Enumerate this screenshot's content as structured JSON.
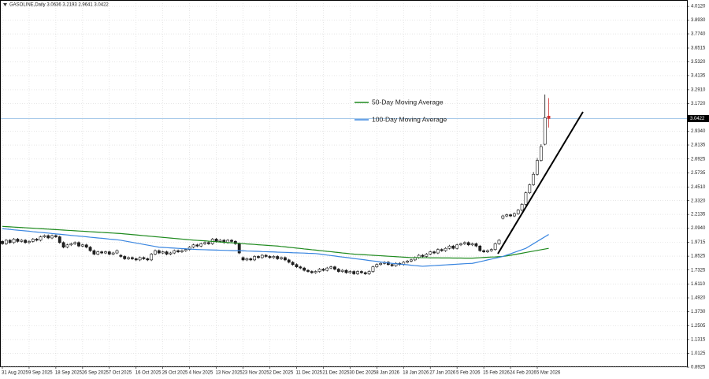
{
  "chart_data": {
    "type": "candlestick",
    "title": "GASOLINE,Daily  3.0636 3.2193 2.9641 3.0422",
    "categories": [
      "31 Aug 2025",
      null,
      null,
      null,
      null,
      null,
      null,
      "9 Sep 2025",
      null,
      null,
      null,
      null,
      null,
      null,
      "18 Sep 2025",
      null,
      null,
      null,
      null,
      null,
      null,
      "26 Sep 2025",
      null,
      null,
      null,
      null,
      null,
      null,
      "7 Oct 2025",
      null,
      null,
      null,
      null,
      null,
      null,
      "16 Oct 2025",
      null,
      null,
      null,
      null,
      null,
      null,
      "26 Oct 2025",
      null,
      null,
      null,
      null,
      null,
      null,
      "4 Nov 2025",
      null,
      null,
      null,
      null,
      null,
      null,
      "13 Nov 2025",
      null,
      null,
      null,
      null,
      null,
      null,
      "23 Nov 2025",
      null,
      null,
      null,
      null,
      null,
      null,
      "2 Dec 2025",
      null,
      null,
      null,
      null,
      null,
      null,
      "11 Dec 2025",
      null,
      null,
      null,
      null,
      null,
      null,
      "21 Dec 2025",
      null,
      null,
      null,
      null,
      null,
      null,
      "30 Dec 2025",
      null,
      null,
      null,
      null,
      null,
      null,
      "8 Jan 2026",
      null,
      null,
      null,
      null,
      null,
      null,
      "18 Jan 2026",
      null,
      null,
      null,
      null,
      null,
      null,
      "27 Jan 2026",
      null,
      null,
      null,
      null,
      null,
      null,
      "5 Feb 2026",
      null,
      null,
      null,
      null,
      null,
      null,
      "15 Feb 2026",
      null,
      null,
      null,
      null,
      null,
      null,
      "24 Feb 2026",
      null,
      null,
      null,
      null,
      null,
      null,
      "5 Mar 2026",
      null,
      null,
      null
    ],
    "ohlc": [
      [
        1.98,
        1.99,
        1.95,
        1.96
      ],
      [
        1.96,
        2.0,
        1.95,
        1.99
      ],
      [
        1.99,
        2.0,
        1.96,
        1.97
      ],
      [
        1.97,
        2.01,
        1.96,
        2.0
      ],
      [
        2.0,
        2.01,
        1.97,
        1.98
      ],
      [
        1.98,
        2.0,
        1.97,
        1.99
      ],
      [
        1.99,
        2.0,
        1.96,
        1.97
      ],
      [
        1.97,
        1.99,
        1.96,
        1.98
      ],
      [
        1.98,
        2.01,
        1.97,
        2.0
      ],
      [
        2.0,
        2.01,
        1.98,
        1.99
      ],
      [
        1.99,
        2.03,
        1.98,
        2.02
      ],
      [
        2.02,
        2.04,
        2.01,
        2.03
      ],
      [
        2.03,
        2.04,
        2.0,
        2.01
      ],
      [
        2.01,
        2.04,
        2.0,
        2.03
      ],
      [
        2.03,
        2.04,
        2.01,
        2.02
      ],
      [
        2.02,
        2.03,
        1.96,
        1.97
      ],
      [
        1.97,
        1.98,
        1.92,
        1.93
      ],
      [
        1.93,
        1.96,
        1.92,
        1.95
      ],
      [
        1.95,
        1.97,
        1.94,
        1.96
      ],
      [
        1.96,
        1.98,
        1.95,
        1.97
      ],
      [
        1.97,
        1.98,
        1.93,
        1.94
      ],
      [
        1.94,
        1.96,
        1.93,
        1.95
      ],
      [
        1.95,
        1.96,
        1.92,
        1.93
      ],
      [
        1.93,
        1.94,
        1.89,
        1.9
      ],
      [
        1.9,
        1.91,
        1.86,
        1.87
      ],
      [
        1.87,
        1.9,
        1.86,
        1.89
      ],
      [
        1.89,
        1.9,
        1.87,
        1.88
      ],
      [
        1.88,
        1.9,
        1.87,
        1.89
      ],
      [
        1.89,
        1.9,
        1.86,
        1.87
      ],
      [
        1.87,
        1.89,
        1.86,
        1.88
      ],
      [
        1.88,
        1.91,
        1.87,
        1.9
      ],
      [
        1.86,
        1.87,
        1.84,
        1.85
      ],
      [
        1.85,
        1.86,
        1.82,
        1.83
      ],
      [
        1.83,
        1.85,
        1.82,
        1.84
      ],
      [
        1.84,
        1.85,
        1.82,
        1.83
      ],
      [
        1.83,
        1.84,
        1.81,
        1.82
      ],
      [
        1.82,
        1.85,
        1.81,
        1.84
      ],
      [
        1.84,
        1.85,
        1.82,
        1.83
      ],
      [
        1.83,
        1.84,
        1.81,
        1.82
      ],
      [
        1.82,
        1.88,
        1.81,
        1.87
      ],
      [
        1.87,
        1.91,
        1.86,
        1.9
      ],
      [
        1.9,
        1.91,
        1.87,
        1.88
      ],
      [
        1.88,
        1.9,
        1.87,
        1.89
      ],
      [
        1.89,
        1.9,
        1.86,
        1.87
      ],
      [
        1.87,
        1.89,
        1.86,
        1.88
      ],
      [
        1.88,
        1.91,
        1.87,
        1.9
      ],
      [
        1.9,
        1.91,
        1.88,
        1.89
      ],
      [
        1.89,
        1.91,
        1.88,
        1.9
      ],
      [
        1.9,
        1.92,
        1.89,
        1.91
      ],
      [
        1.91,
        1.94,
        1.9,
        1.93
      ],
      [
        1.93,
        1.96,
        1.92,
        1.95
      ],
      [
        1.95,
        1.96,
        1.93,
        1.94
      ],
      [
        1.94,
        1.97,
        1.93,
        1.96
      ],
      [
        1.96,
        1.98,
        1.95,
        1.97
      ],
      [
        1.97,
        1.98,
        1.95,
        1.96
      ],
      [
        1.96,
        2.01,
        1.95,
        2.0
      ],
      [
        2.0,
        2.01,
        1.97,
        1.98
      ],
      [
        1.98,
        2.0,
        1.97,
        1.99
      ],
      [
        1.99,
        2.0,
        1.96,
        1.97
      ],
      [
        1.97,
        2.0,
        1.96,
        1.99
      ],
      [
        1.99,
        2.0,
        1.97,
        1.98
      ],
      [
        1.98,
        1.99,
        1.95,
        1.96
      ],
      [
        1.96,
        1.97,
        1.87,
        1.88
      ],
      [
        1.84,
        1.85,
        1.81,
        1.82
      ],
      [
        1.82,
        1.84,
        1.81,
        1.83
      ],
      [
        1.83,
        1.84,
        1.81,
        1.82
      ],
      [
        1.82,
        1.86,
        1.81,
        1.85
      ],
      [
        1.85,
        1.86,
        1.83,
        1.84
      ],
      [
        1.84,
        1.87,
        1.83,
        1.86
      ],
      [
        1.86,
        1.87,
        1.84,
        1.85
      ],
      [
        1.85,
        1.86,
        1.83,
        1.84
      ],
      [
        1.84,
        1.86,
        1.83,
        1.85
      ],
      [
        1.85,
        1.86,
        1.82,
        1.83
      ],
      [
        1.83,
        1.85,
        1.82,
        1.84
      ],
      [
        1.84,
        1.85,
        1.81,
        1.82
      ],
      [
        1.82,
        1.83,
        1.79,
        1.8
      ],
      [
        1.8,
        1.81,
        1.77,
        1.78
      ],
      [
        1.78,
        1.79,
        1.75,
        1.76
      ],
      [
        1.76,
        1.77,
        1.74,
        1.75
      ],
      [
        1.75,
        1.76,
        1.72,
        1.73
      ],
      [
        1.73,
        1.74,
        1.71,
        1.72
      ],
      [
        1.72,
        1.73,
        1.7,
        1.71
      ],
      [
        1.71,
        1.73,
        1.7,
        1.72
      ],
      [
        1.72,
        1.75,
        1.71,
        1.74
      ],
      [
        1.74,
        1.75,
        1.72,
        1.73
      ],
      [
        1.73,
        1.76,
        1.72,
        1.75
      ],
      [
        1.75,
        1.77,
        1.74,
        1.76
      ],
      [
        1.76,
        1.77,
        1.73,
        1.74
      ],
      [
        1.74,
        1.75,
        1.71,
        1.72
      ],
      [
        1.72,
        1.74,
        1.71,
        1.73
      ],
      [
        1.73,
        1.74,
        1.7,
        1.71
      ],
      [
        1.71,
        1.73,
        1.7,
        1.72
      ],
      [
        1.72,
        1.73,
        1.69,
        1.7
      ],
      [
        1.7,
        1.73,
        1.69,
        1.72
      ],
      [
        1.72,
        1.73,
        1.7,
        1.71
      ],
      [
        1.71,
        1.72,
        1.69,
        1.7
      ],
      [
        1.7,
        1.73,
        1.69,
        1.72
      ],
      [
        1.72,
        1.77,
        1.71,
        1.76
      ],
      [
        1.76,
        1.79,
        1.75,
        1.78
      ],
      [
        1.78,
        1.8,
        1.77,
        1.79
      ],
      [
        1.79,
        1.81,
        1.78,
        1.8
      ],
      [
        1.8,
        1.81,
        1.77,
        1.78
      ],
      [
        1.78,
        1.79,
        1.76,
        1.77
      ],
      [
        1.77,
        1.8,
        1.76,
        1.79
      ],
      [
        1.79,
        1.8,
        1.77,
        1.78
      ],
      [
        1.78,
        1.81,
        1.77,
        1.8
      ],
      [
        1.8,
        1.82,
        1.79,
        1.81
      ],
      [
        1.81,
        1.83,
        1.8,
        1.82
      ],
      [
        1.82,
        1.85,
        1.81,
        1.84
      ],
      [
        1.84,
        1.87,
        1.83,
        1.86
      ],
      [
        1.86,
        1.87,
        1.84,
        1.85
      ],
      [
        1.85,
        1.88,
        1.84,
        1.87
      ],
      [
        1.87,
        1.9,
        1.86,
        1.89
      ],
      [
        1.89,
        1.9,
        1.87,
        1.88
      ],
      [
        1.88,
        1.92,
        1.87,
        1.91
      ],
      [
        1.91,
        1.92,
        1.89,
        1.9
      ],
      [
        1.9,
        1.93,
        1.89,
        1.92
      ],
      [
        1.92,
        1.95,
        1.91,
        1.94
      ],
      [
        1.94,
        1.95,
        1.91,
        1.92
      ],
      [
        1.92,
        1.96,
        1.91,
        1.95
      ],
      [
        1.95,
        1.97,
        1.94,
        1.96
      ],
      [
        1.96,
        1.98,
        1.95,
        1.97
      ],
      [
        1.97,
        1.98,
        1.94,
        1.95
      ],
      [
        1.95,
        1.97,
        1.94,
        1.96
      ],
      [
        1.96,
        1.97,
        1.93,
        1.94
      ],
      [
        1.94,
        1.95,
        1.89,
        1.9
      ],
      [
        1.9,
        1.91,
        1.88,
        1.89
      ],
      [
        1.89,
        1.91,
        1.88,
        1.9
      ],
      [
        1.9,
        1.92,
        1.89,
        1.91
      ],
      [
        1.91,
        1.97,
        1.9,
        1.96
      ],
      [
        1.96,
        2.0,
        1.95,
        1.99
      ],
      [
        2.18,
        2.21,
        2.17,
        2.2
      ],
      [
        2.2,
        2.22,
        2.19,
        2.21
      ],
      [
        2.21,
        2.22,
        2.19,
        2.2
      ],
      [
        2.2,
        2.23,
        2.19,
        2.22
      ],
      [
        2.22,
        2.26,
        2.21,
        2.25
      ],
      [
        2.25,
        2.31,
        2.24,
        2.3
      ],
      [
        2.3,
        2.41,
        2.29,
        2.4
      ],
      [
        2.4,
        2.48,
        2.39,
        2.47
      ],
      [
        2.47,
        2.58,
        2.46,
        2.56
      ],
      [
        2.56,
        2.7,
        2.55,
        2.68
      ],
      [
        2.68,
        2.82,
        2.67,
        2.8
      ],
      [
        2.82,
        3.25,
        2.81,
        3.05
      ],
      [
        3.0636,
        3.2193,
        2.9641,
        3.0422
      ]
    ],
    "up_color": "#ffffff",
    "down_color": "#222222",
    "outline_color": "#111111",
    "last_color": "#d23030",
    "series": [
      {
        "name": "50-Day Moving Average",
        "color": "#1e8a1e",
        "values": [
          2.11,
          2.108,
          2.106,
          2.104,
          2.102,
          2.1,
          2.098,
          2.096,
          2.094,
          2.092,
          2.09,
          2.088,
          2.086,
          2.084,
          2.082,
          2.08,
          2.078,
          2.076,
          2.074,
          2.072,
          2.07,
          2.068,
          2.066,
          2.064,
          2.062,
          2.06,
          2.058,
          2.056,
          2.054,
          2.052,
          2.05,
          2.048,
          2.045,
          2.042,
          2.039,
          2.036,
          2.033,
          2.03,
          2.027,
          2.024,
          2.021,
          2.018,
          2.015,
          2.012,
          2.009,
          2.006,
          2.003,
          2.0,
          1.997,
          1.994,
          1.991,
          1.989,
          1.987,
          1.985,
          1.982,
          1.98,
          1.977,
          1.975,
          1.973,
          1.97,
          1.968,
          1.966,
          1.963,
          1.961,
          1.958,
          1.956,
          1.954,
          1.951,
          1.949,
          1.947,
          1.944,
          1.942,
          1.94,
          1.936,
          1.933,
          1.929,
          1.926,
          1.922,
          1.919,
          1.915,
          1.912,
          1.908,
          1.905,
          1.901,
          1.898,
          1.894,
          1.891,
          1.887,
          1.884,
          1.88,
          1.877,
          1.873,
          1.87,
          1.868,
          1.866,
          1.864,
          1.862,
          1.86,
          1.858,
          1.856,
          1.854,
          1.852,
          1.85,
          1.848,
          1.846,
          1.844,
          1.842,
          1.84,
          1.84,
          1.84,
          1.839,
          1.839,
          1.838,
          1.838,
          1.838,
          1.837,
          1.837,
          1.837,
          1.836,
          1.836,
          1.836,
          1.835,
          1.835,
          1.835,
          1.837,
          1.839,
          1.841,
          1.843,
          1.845,
          1.846,
          1.848,
          1.85,
          1.855,
          1.86,
          1.866,
          1.872,
          1.878,
          1.884,
          1.89,
          1.896,
          1.902,
          1.908,
          1.914,
          1.92
        ]
      },
      {
        "name": "100-Day Moving Average",
        "color": "#3a86e0",
        "values": [
          2.09,
          2.087,
          2.084,
          2.08,
          2.077,
          2.074,
          2.071,
          2.068,
          2.064,
          2.061,
          2.058,
          2.055,
          2.052,
          2.048,
          2.045,
          2.042,
          2.039,
          2.036,
          2.032,
          2.029,
          2.026,
          2.023,
          2.02,
          2.016,
          2.013,
          2.01,
          2.007,
          2.004,
          2.0,
          1.997,
          1.994,
          1.99,
          1.984,
          1.978,
          1.972,
          1.966,
          1.96,
          1.954,
          1.948,
          1.942,
          1.936,
          1.93,
          1.928,
          1.926,
          1.924,
          1.922,
          1.92,
          1.918,
          1.916,
          1.914,
          1.912,
          1.91,
          1.909,
          1.908,
          1.907,
          1.906,
          1.905,
          1.904,
          1.903,
          1.902,
          1.901,
          1.9,
          1.9,
          1.899,
          1.897,
          1.896,
          1.895,
          1.894,
          1.892,
          1.891,
          1.89,
          1.889,
          1.887,
          1.886,
          1.885,
          1.884,
          1.882,
          1.881,
          1.88,
          1.879,
          1.877,
          1.876,
          1.875,
          1.871,
          1.867,
          1.862,
          1.858,
          1.854,
          1.849,
          1.845,
          1.841,
          1.837,
          1.832,
          1.828,
          1.824,
          1.82,
          1.815,
          1.811,
          1.807,
          1.802,
          1.798,
          1.794,
          1.79,
          1.787,
          1.784,
          1.781,
          1.778,
          1.774,
          1.771,
          1.768,
          1.765,
          1.767,
          1.769,
          1.771,
          1.773,
          1.775,
          1.777,
          1.779,
          1.781,
          1.783,
          1.785,
          1.787,
          1.789,
          1.79,
          1.797,
          1.805,
          1.812,
          1.82,
          1.827,
          1.835,
          1.842,
          1.85,
          1.862,
          1.873,
          1.885,
          1.897,
          1.908,
          1.92,
          1.94,
          1.96,
          1.98,
          2.0,
          2.02,
          2.04
        ]
      }
    ],
    "ylim": [
      0.845,
      4.067
    ],
    "yticks": [
      {
        "value": 4.012,
        "label": "4.0120"
      },
      {
        "value": 3.893,
        "label": "3.8930"
      },
      {
        "value": 3.774,
        "label": "3.7740"
      },
      {
        "value": 3.6515,
        "label": "3.6515"
      },
      {
        "value": 3.532,
        "label": "3.5320"
      },
      {
        "value": 3.4135,
        "label": "3.4135"
      },
      {
        "value": 3.291,
        "label": "3.2910"
      },
      {
        "value": 3.172,
        "label": "3.1720"
      },
      {
        "value": 2.934,
        "label": "2.9340"
      },
      {
        "value": 2.8135,
        "label": "2.8135"
      },
      {
        "value": 2.6925,
        "label": "2.6925"
      },
      {
        "value": 2.5735,
        "label": "2.5735"
      },
      {
        "value": 2.451,
        "label": "2.4510"
      },
      {
        "value": 2.332,
        "label": "2.3320"
      },
      {
        "value": 2.2135,
        "label": "2.2135"
      },
      {
        "value": 2.094,
        "label": "2.0940"
      },
      {
        "value": 1.9715,
        "label": "1.9715"
      },
      {
        "value": 1.8525,
        "label": "1.8525"
      },
      {
        "value": 1.7325,
        "label": "1.7325"
      },
      {
        "value": 1.611,
        "label": "1.6110"
      },
      {
        "value": 1.492,
        "label": "1.4920"
      },
      {
        "value": 1.373,
        "label": "1.3730"
      },
      {
        "value": 1.2505,
        "label": "1.2505"
      },
      {
        "value": 1.1315,
        "label": "1.1315"
      },
      {
        "value": 1.0125,
        "label": "1.0125"
      },
      {
        "value": 0.8925,
        "label": "0.8925"
      }
    ],
    "grid": true,
    "price_line_color": "#9cc3e6"
  }
}
